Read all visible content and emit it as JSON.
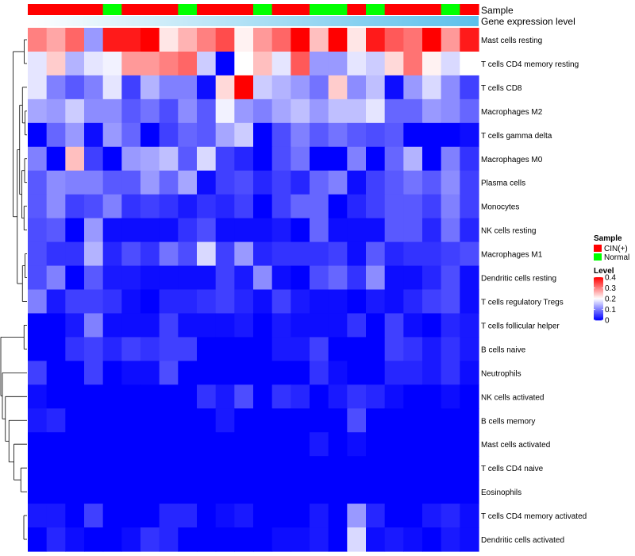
{
  "chart_data": {
    "type": "heatmap",
    "title": "",
    "annotation_tracks": [
      {
        "name": "Sample",
        "values": [
          "CIN(+)",
          "CIN(+)",
          "CIN(+)",
          "CIN(+)",
          "Normal",
          "CIN(+)",
          "CIN(+)",
          "CIN(+)",
          "Normal",
          "CIN(+)",
          "CIN(+)",
          "CIN(+)",
          "Normal",
          "CIN(+)",
          "CIN(+)",
          "Normal",
          "Normal",
          "CIN(+)",
          "Normal",
          "CIN(+)",
          "CIN(+)",
          "CIN(+)",
          "Normal",
          "CIN(+)"
        ]
      },
      {
        "name": "Gene expression level",
        "gradient_from": "#ffffff",
        "gradient_to": "#5bc0eb"
      }
    ],
    "rows": [
      "Mast cells resting",
      "T cells CD4 memory resting",
      "T cells CD8",
      "Macrophages M2",
      "T cells gamma delta",
      "Macrophages M0",
      "Plasma cells",
      "Monocytes",
      "NK cells resting",
      "Macrophages M1",
      "Dendritic cells resting",
      "T cells regulatory  Tregs",
      "T cells follicular helper",
      "B cells naive",
      "Neutrophils",
      "NK cells activated",
      "B cells memory",
      "Mast cells activated",
      "T cells CD4 naive",
      "Eosinophils",
      "T cells CD4 memory activated",
      "Dendritic cells activated"
    ],
    "values": [
      [
        0.3,
        0.27,
        0.32,
        0.12,
        0.38,
        0.38,
        0.4,
        0.22,
        0.26,
        0.3,
        0.34,
        0.21,
        0.28,
        0.32,
        0.4,
        0.25,
        0.4,
        0.22,
        0.38,
        0.33,
        0.31,
        0.4,
        0.28,
        0.38
      ],
      [
        0.18,
        0.24,
        0.14,
        0.18,
        0.19,
        0.28,
        0.28,
        0.3,
        0.32,
        0.16,
        0.0,
        0.2,
        0.25,
        0.18,
        0.33,
        0.12,
        0.12,
        0.18,
        0.16,
        0.23,
        0.31,
        0.21,
        0.17,
        0.2
      ],
      [
        0.18,
        0.1,
        0.07,
        0.1,
        0.18,
        0.05,
        0.14,
        0.1,
        0.1,
        0.01,
        0.23,
        0.4,
        0.16,
        0.14,
        0.12,
        0.09,
        0.24,
        0.11,
        0.15,
        0.01,
        0.12,
        0.17,
        0.11,
        0.05
      ],
      [
        0.13,
        0.12,
        0.16,
        0.11,
        0.11,
        0.07,
        0.09,
        0.06,
        0.11,
        0.07,
        0.19,
        0.12,
        0.1,
        0.13,
        0.15,
        0.12,
        0.15,
        0.15,
        0.18,
        0.08,
        0.08,
        0.12,
        0.11,
        0.08
      ],
      [
        0.0,
        0.08,
        0.12,
        0.01,
        0.12,
        0.08,
        0.0,
        0.05,
        0.08,
        0.07,
        0.13,
        0.16,
        0.0,
        0.06,
        0.1,
        0.07,
        0.09,
        0.07,
        0.06,
        0.07,
        0.0,
        0.0,
        0.0,
        0.01
      ],
      [
        0.1,
        0.0,
        0.25,
        0.05,
        0.0,
        0.12,
        0.13,
        0.15,
        0.07,
        0.17,
        0.05,
        0.03,
        0.0,
        0.06,
        0.09,
        0.0,
        0.0,
        0.1,
        0.0,
        0.08,
        0.14,
        0.0,
        0.1,
        0.04
      ],
      [
        0.07,
        0.11,
        0.1,
        0.1,
        0.07,
        0.07,
        0.12,
        0.08,
        0.13,
        0.01,
        0.05,
        0.06,
        0.03,
        0.05,
        0.03,
        0.08,
        0.1,
        0.01,
        0.05,
        0.07,
        0.09,
        0.07,
        0.11,
        0.05
      ],
      [
        0.07,
        0.11,
        0.05,
        0.06,
        0.1,
        0.04,
        0.05,
        0.04,
        0.02,
        0.04,
        0.03,
        0.05,
        0.0,
        0.05,
        0.08,
        0.08,
        0.0,
        0.03,
        0.05,
        0.07,
        0.07,
        0.05,
        0.1,
        0.05
      ],
      [
        0.06,
        0.07,
        0.0,
        0.12,
        0.01,
        0.01,
        0.01,
        0.01,
        0.04,
        0.06,
        0.01,
        0.01,
        0.01,
        0.02,
        0.0,
        0.08,
        0.01,
        0.01,
        0.01,
        0.07,
        0.07,
        0.03,
        0.09,
        0.03
      ],
      [
        0.06,
        0.04,
        0.04,
        0.14,
        0.03,
        0.06,
        0.04,
        0.09,
        0.06,
        0.17,
        0.05,
        0.12,
        0.03,
        0.04,
        0.04,
        0.04,
        0.05,
        0.01,
        0.07,
        0.03,
        0.04,
        0.04,
        0.05,
        0.06
      ],
      [
        0.06,
        0.1,
        0.0,
        0.07,
        0.02,
        0.02,
        0.01,
        0.01,
        0.01,
        0.01,
        0.05,
        0.02,
        0.11,
        0.01,
        0.0,
        0.06,
        0.08,
        0.04,
        0.11,
        0.01,
        0.01,
        0.03,
        0.06,
        0.01
      ],
      [
        0.1,
        0.02,
        0.05,
        0.05,
        0.04,
        0.01,
        0.0,
        0.03,
        0.03,
        0.04,
        0.05,
        0.03,
        0.01,
        0.05,
        0.02,
        0.01,
        0.01,
        0.0,
        0.02,
        0.01,
        0.03,
        0.05,
        0.06,
        0.01
      ],
      [
        0.0,
        0.0,
        0.02,
        0.1,
        0.01,
        0.01,
        0.01,
        0.05,
        0.01,
        0.01,
        0.01,
        0.02,
        0.0,
        0.02,
        0.01,
        0.01,
        0.01,
        0.04,
        0.0,
        0.05,
        0.01,
        0.0,
        0.03,
        0.02
      ],
      [
        0.0,
        0.0,
        0.04,
        0.05,
        0.03,
        0.05,
        0.04,
        0.05,
        0.05,
        0.0,
        0.0,
        0.0,
        0.0,
        0.02,
        0.02,
        0.05,
        0.0,
        0.0,
        0.0,
        0.05,
        0.04,
        0.02,
        0.04,
        0.02
      ],
      [
        0.05,
        0.0,
        0.0,
        0.05,
        0.0,
        0.01,
        0.01,
        0.06,
        0.0,
        0.0,
        0.0,
        0.0,
        0.0,
        0.0,
        0.0,
        0.04,
        0.01,
        0.0,
        0.0,
        0.03,
        0.03,
        0.02,
        0.04,
        0.01
      ],
      [
        0.01,
        0.0,
        0.0,
        0.0,
        0.0,
        0.0,
        0.0,
        0.0,
        0.0,
        0.04,
        0.02,
        0.06,
        0.0,
        0.04,
        0.03,
        0.0,
        0.02,
        0.04,
        0.03,
        0.01,
        0.0,
        0.0,
        0.01,
        0.0
      ],
      [
        0.02,
        0.03,
        0.0,
        0.0,
        0.0,
        0.0,
        0.0,
        0.0,
        0.0,
        0.0,
        0.02,
        0.0,
        0.0,
        0.0,
        0.0,
        0.0,
        0.0,
        0.06,
        0.0,
        0.0,
        0.0,
        0.0,
        0.0,
        0.0
      ],
      [
        0.0,
        0.0,
        0.0,
        0.0,
        0.0,
        0.0,
        0.0,
        0.0,
        0.0,
        0.0,
        0.0,
        0.0,
        0.0,
        0.0,
        0.0,
        0.02,
        0.0,
        0.01,
        0.0,
        0.0,
        0.0,
        0.0,
        0.0,
        0.0
      ],
      [
        0.0,
        0.0,
        0.0,
        0.0,
        0.0,
        0.0,
        0.0,
        0.0,
        0.0,
        0.0,
        0.0,
        0.0,
        0.0,
        0.0,
        0.0,
        0.0,
        0.0,
        0.0,
        0.0,
        0.0,
        0.0,
        0.0,
        0.0,
        0.0
      ],
      [
        0.0,
        0.0,
        0.0,
        0.0,
        0.0,
        0.0,
        0.0,
        0.0,
        0.0,
        0.0,
        0.0,
        0.0,
        0.0,
        0.0,
        0.0,
        0.0,
        0.0,
        0.0,
        0.0,
        0.0,
        0.0,
        0.0,
        0.0,
        0.0
      ],
      [
        0.02,
        0.02,
        0.0,
        0.05,
        0.0,
        0.0,
        0.0,
        0.03,
        0.03,
        0.0,
        0.01,
        0.02,
        0.0,
        0.0,
        0.0,
        0.02,
        0.0,
        0.12,
        0.03,
        0.0,
        0.0,
        0.02,
        0.03,
        0.01
      ],
      [
        0.0,
        0.03,
        0.01,
        0.0,
        0.0,
        0.01,
        0.04,
        0.03,
        0.0,
        0.0,
        0.0,
        0.0,
        0.0,
        0.01,
        0.01,
        0.02,
        0.0,
        0.17,
        0.01,
        0.02,
        0.01,
        0.0,
        0.02,
        0.01
      ]
    ],
    "color_scale": {
      "min": 0,
      "max": 0.4,
      "stops": [
        {
          "value": 0,
          "color": "#0000ff"
        },
        {
          "value": 0.2,
          "color": "#ffffff"
        },
        {
          "value": 0.4,
          "color": "#ff0000"
        }
      ]
    },
    "legend": {
      "sample_title": "Sample",
      "sample_entries": [
        {
          "label": "CIN(+)",
          "color": "#ff0000"
        },
        {
          "label": "Normal",
          "color": "#00ff00"
        }
      ],
      "level_title": "Level",
      "level_ticks": [
        {
          "value": 0.4,
          "label": "0.4"
        },
        {
          "value": 0.3,
          "label": "0.3"
        },
        {
          "value": 0.2,
          "label": "0.2"
        },
        {
          "value": 0.1,
          "label": "0.1"
        },
        {
          "value": 0,
          "label": "0"
        }
      ],
      "placement": "right"
    },
    "row_dendrogram": true
  }
}
